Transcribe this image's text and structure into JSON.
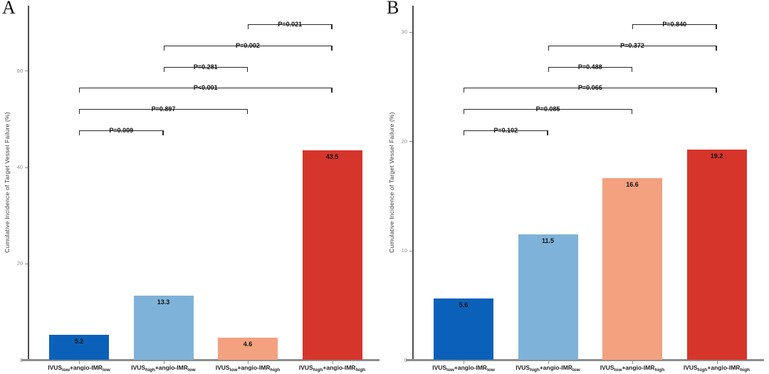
{
  "figure": {
    "background": "#ffffff",
    "axis_line_color": "#4d4d4d",
    "baseline_color": "#8e8e8e",
    "tick_label_color": "#909090",
    "bracket_color": "#2a2a2a",
    "text_color": "#111111"
  },
  "chart_data": [
    {
      "type": "bar",
      "panel_label": "A",
      "title": "",
      "xlabel": "",
      "ylabel": "Cumulative Incidence of Target Vessel Failure (%)",
      "categories": [
        "IVUS_{low}+angio-IMR_{low}",
        "IVUS_{high}+angio-IMR_{low}",
        "IVUS_{low}+angio-IMR_{high}",
        "IVUS_{high}+angio-IMR_{high}"
      ],
      "values": [
        5.2,
        13.3,
        4.6,
        43.5
      ],
      "value_labels": [
        "5.2",
        "13.3",
        "4.6",
        "43.5"
      ],
      "bar_colors": [
        "#0b61b9",
        "#7fb2d9",
        "#f3a17e",
        "#d6352c"
      ],
      "yticks": [
        0,
        20,
        40,
        60
      ],
      "ylim": [
        0,
        73.5
      ],
      "grid": false,
      "legend_position": "none",
      "comparisons": [
        {
          "between": [
            2,
            3
          ],
          "label": "P=0.021"
        },
        {
          "between": [
            1,
            3
          ],
          "label": "P=0.002"
        },
        {
          "between": [
            1,
            2
          ],
          "label": "P=0.281"
        },
        {
          "between": [
            0,
            3
          ],
          "label": "P<0.001"
        },
        {
          "between": [
            0,
            2
          ],
          "label": "P=0.897"
        },
        {
          "between": [
            0,
            1
          ],
          "label": "P=0.009"
        }
      ]
    },
    {
      "type": "bar",
      "panel_label": "B",
      "title": "",
      "xlabel": "",
      "ylabel": "Cumulative Incidence of Target Vessel Failure (%)",
      "categories": [
        "IVUS_{low}+angio-IMR_{low}",
        "IVUS_{high}+angio-IMR_{low}",
        "IVUS_{low}+angio-IMR_{high}",
        "IVUS_{high}+angio-IMR_{high}"
      ],
      "values": [
        5.6,
        11.5,
        16.6,
        19.2
      ],
      "value_labels": [
        "5.6",
        "11.5",
        "16.6",
        "19.2"
      ],
      "bar_colors": [
        "#0b61b9",
        "#7fb2d9",
        "#f3a17e",
        "#d6352c"
      ],
      "yticks": [
        0,
        10,
        20,
        30
      ],
      "ylim": [
        0,
        32.4
      ],
      "grid": false,
      "legend_position": "none",
      "comparisons": [
        {
          "between": [
            2,
            3
          ],
          "label": "P=0.840"
        },
        {
          "between": [
            1,
            3
          ],
          "label": "P=0.372"
        },
        {
          "between": [
            1,
            2
          ],
          "label": "P=0.488"
        },
        {
          "between": [
            0,
            3
          ],
          "label": "P=0.066"
        },
        {
          "between": [
            0,
            2
          ],
          "label": "P=0.085"
        },
        {
          "between": [
            0,
            1
          ],
          "label": "P=0.102"
        }
      ]
    }
  ]
}
